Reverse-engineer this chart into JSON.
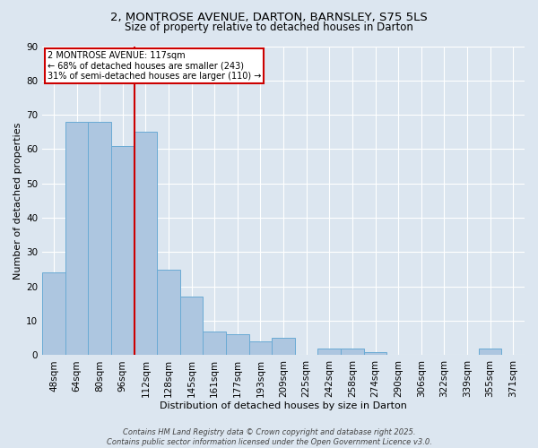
{
  "title_line1": "2, MONTROSE AVENUE, DARTON, BARNSLEY, S75 5LS",
  "title_line2": "Size of property relative to detached houses in Darton",
  "xlabel": "Distribution of detached houses by size in Darton",
  "ylabel": "Number of detached properties",
  "bin_labels": [
    "48sqm",
    "64sqm",
    "80sqm",
    "96sqm",
    "112sqm",
    "128sqm",
    "145sqm",
    "161sqm",
    "177sqm",
    "193sqm",
    "209sqm",
    "225sqm",
    "242sqm",
    "258sqm",
    "274sqm",
    "290sqm",
    "306sqm",
    "322sqm",
    "339sqm",
    "355sqm",
    "371sqm"
  ],
  "bar_values": [
    24,
    68,
    68,
    61,
    65,
    25,
    17,
    7,
    6,
    4,
    5,
    0,
    2,
    2,
    1,
    0,
    0,
    0,
    0,
    2,
    0
  ],
  "bar_color": "#adc6e0",
  "bar_edge_color": "#6aaad4",
  "ref_line_bin": 4,
  "annotation_line1": "2 MONTROSE AVENUE: 117sqm",
  "annotation_line2": "← 68% of detached houses are smaller (243)",
  "annotation_line3": "31% of semi-detached houses are larger (110) →",
  "annotation_box_facecolor": "#ffffff",
  "annotation_box_edgecolor": "#cc0000",
  "ref_line_color": "#cc0000",
  "ylim_max": 90,
  "yticks": [
    0,
    10,
    20,
    30,
    40,
    50,
    60,
    70,
    80,
    90
  ],
  "footer_text": "Contains HM Land Registry data © Crown copyright and database right 2025.\nContains public sector information licensed under the Open Government Licence v3.0.",
  "bg_color": "#dce6f0",
  "plot_bg_color": "#dce6f0",
  "title_fontsize": 9.5,
  "subtitle_fontsize": 8.5,
  "axis_label_fontsize": 8,
  "tick_fontsize": 7.5,
  "footer_fontsize": 6
}
